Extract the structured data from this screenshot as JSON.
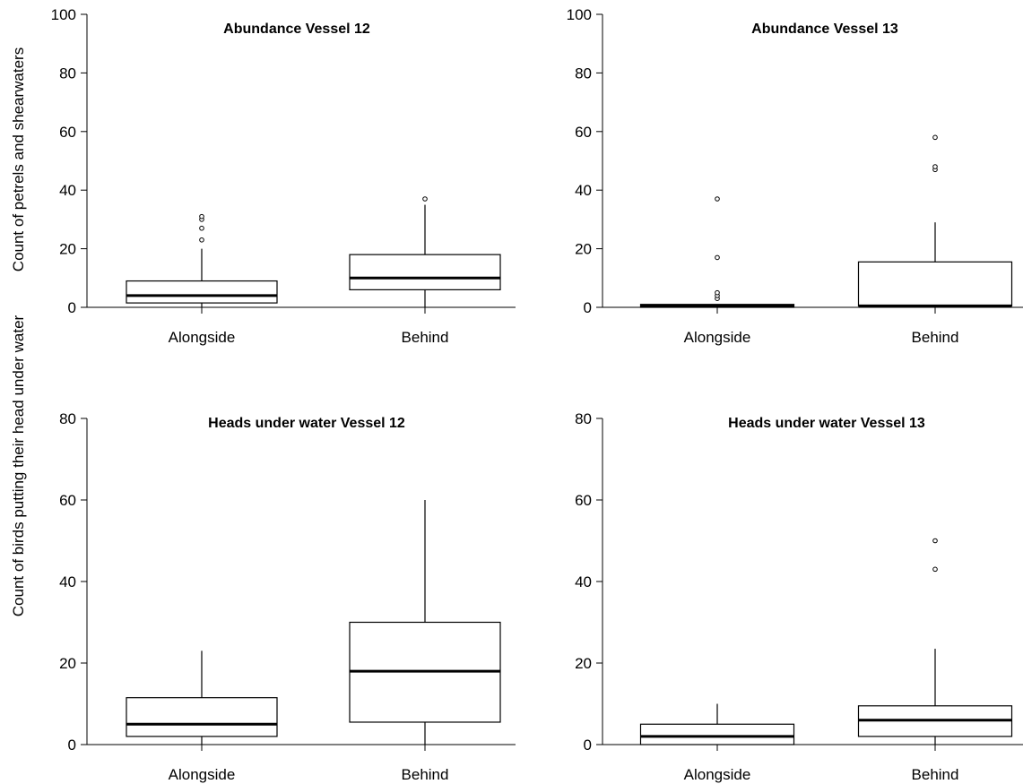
{
  "figure": {
    "ylabel_top": "Count of petrels and shearwaters",
    "ylabel_bottom": "Count of birds putting their head under water"
  },
  "chart_data": [
    {
      "type": "box",
      "title": "Abundance Vessel 12",
      "ylim": [
        0,
        100
      ],
      "yticks": [
        0,
        20,
        40,
        60,
        80,
        100
      ],
      "categories": [
        "Alongside",
        "Behind"
      ],
      "boxes": [
        {
          "category": "Alongside",
          "whisker_low": 0,
          "q1": 1.5,
          "median": 4,
          "q3": 9,
          "whisker_high": 20,
          "outliers": [
            23,
            27,
            30,
            31
          ]
        },
        {
          "category": "Behind",
          "whisker_low": 0,
          "q1": 6,
          "median": 10,
          "q3": 18,
          "whisker_high": 35,
          "outliers": [
            37
          ]
        }
      ]
    },
    {
      "type": "box",
      "title": "Abundance Vessel 13",
      "ylim": [
        0,
        100
      ],
      "yticks": [
        0,
        20,
        40,
        60,
        80,
        100
      ],
      "categories": [
        "Alongside",
        "Behind"
      ],
      "boxes": [
        {
          "category": "Alongside",
          "whisker_low": 0,
          "q1": 0,
          "median": 0.5,
          "q3": 1,
          "whisker_high": 1,
          "outliers": [
            3,
            4,
            5,
            17,
            37
          ]
        },
        {
          "category": "Behind",
          "whisker_low": 0,
          "q1": 0.5,
          "median": 0.5,
          "q3": 15.5,
          "whisker_high": 29,
          "outliers": [
            47,
            48,
            58
          ]
        }
      ]
    },
    {
      "type": "box",
      "title": "Heads under water Vessel 12",
      "ylim": [
        0,
        80
      ],
      "yticks": [
        0,
        20,
        40,
        60,
        80
      ],
      "categories": [
        "Alongside",
        "Behind"
      ],
      "boxes": [
        {
          "category": "Alongside",
          "whisker_low": 0,
          "q1": 2,
          "median": 5,
          "q3": 11.5,
          "whisker_high": 23,
          "outliers": []
        },
        {
          "category": "Behind",
          "whisker_low": 0,
          "q1": 5.5,
          "median": 18,
          "q3": 30,
          "whisker_high": 60,
          "outliers": []
        }
      ]
    },
    {
      "type": "box",
      "title": "Heads under water Vessel 13",
      "ylim": [
        0,
        80
      ],
      "yticks": [
        0,
        20,
        40,
        60,
        80
      ],
      "categories": [
        "Alongside",
        "Behind"
      ],
      "boxes": [
        {
          "category": "Alongside",
          "whisker_low": 0,
          "q1": 0,
          "median": 2,
          "q3": 5,
          "whisker_high": 10,
          "outliers": []
        },
        {
          "category": "Behind",
          "whisker_low": 0,
          "q1": 2,
          "median": 6,
          "q3": 9.5,
          "whisker_high": 23.5,
          "outliers": [
            43,
            50
          ]
        }
      ]
    }
  ]
}
